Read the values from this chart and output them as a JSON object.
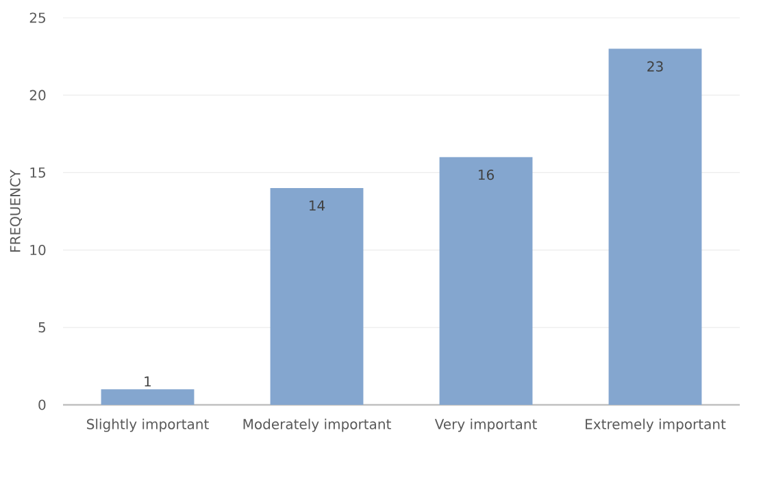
{
  "chart_data": {
    "type": "bar",
    "ylabel": "FREQUENCY",
    "categories": [
      "Slightly important",
      "Moderately important",
      "Very important",
      "Extremely important"
    ],
    "values": [
      1,
      14,
      16,
      23
    ],
    "color": "#84a6cf",
    "ylim": [
      0,
      25
    ],
    "yticks": [
      0,
      5,
      10,
      15,
      20,
      25
    ],
    "grid": "y",
    "data_labels": true
  }
}
